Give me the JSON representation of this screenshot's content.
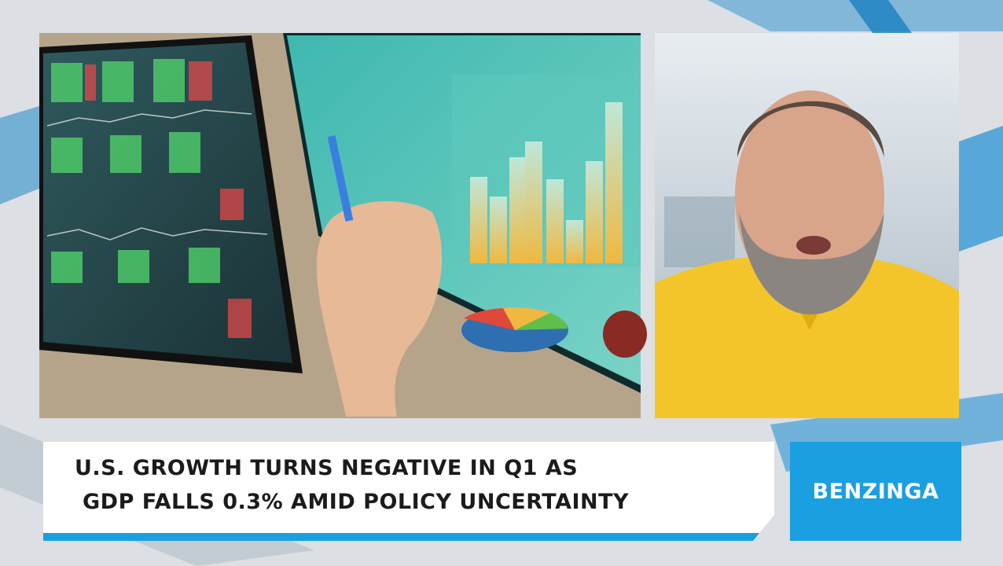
{
  "headline": {
    "lines": [
      "U.S. GROWTH TURNS NEGATIVE IN Q1 AS",
      "GDP FALLS 0.3% AMID POLICY UNCERTAINTY"
    ]
  },
  "brand": "BENZINGA"
}
